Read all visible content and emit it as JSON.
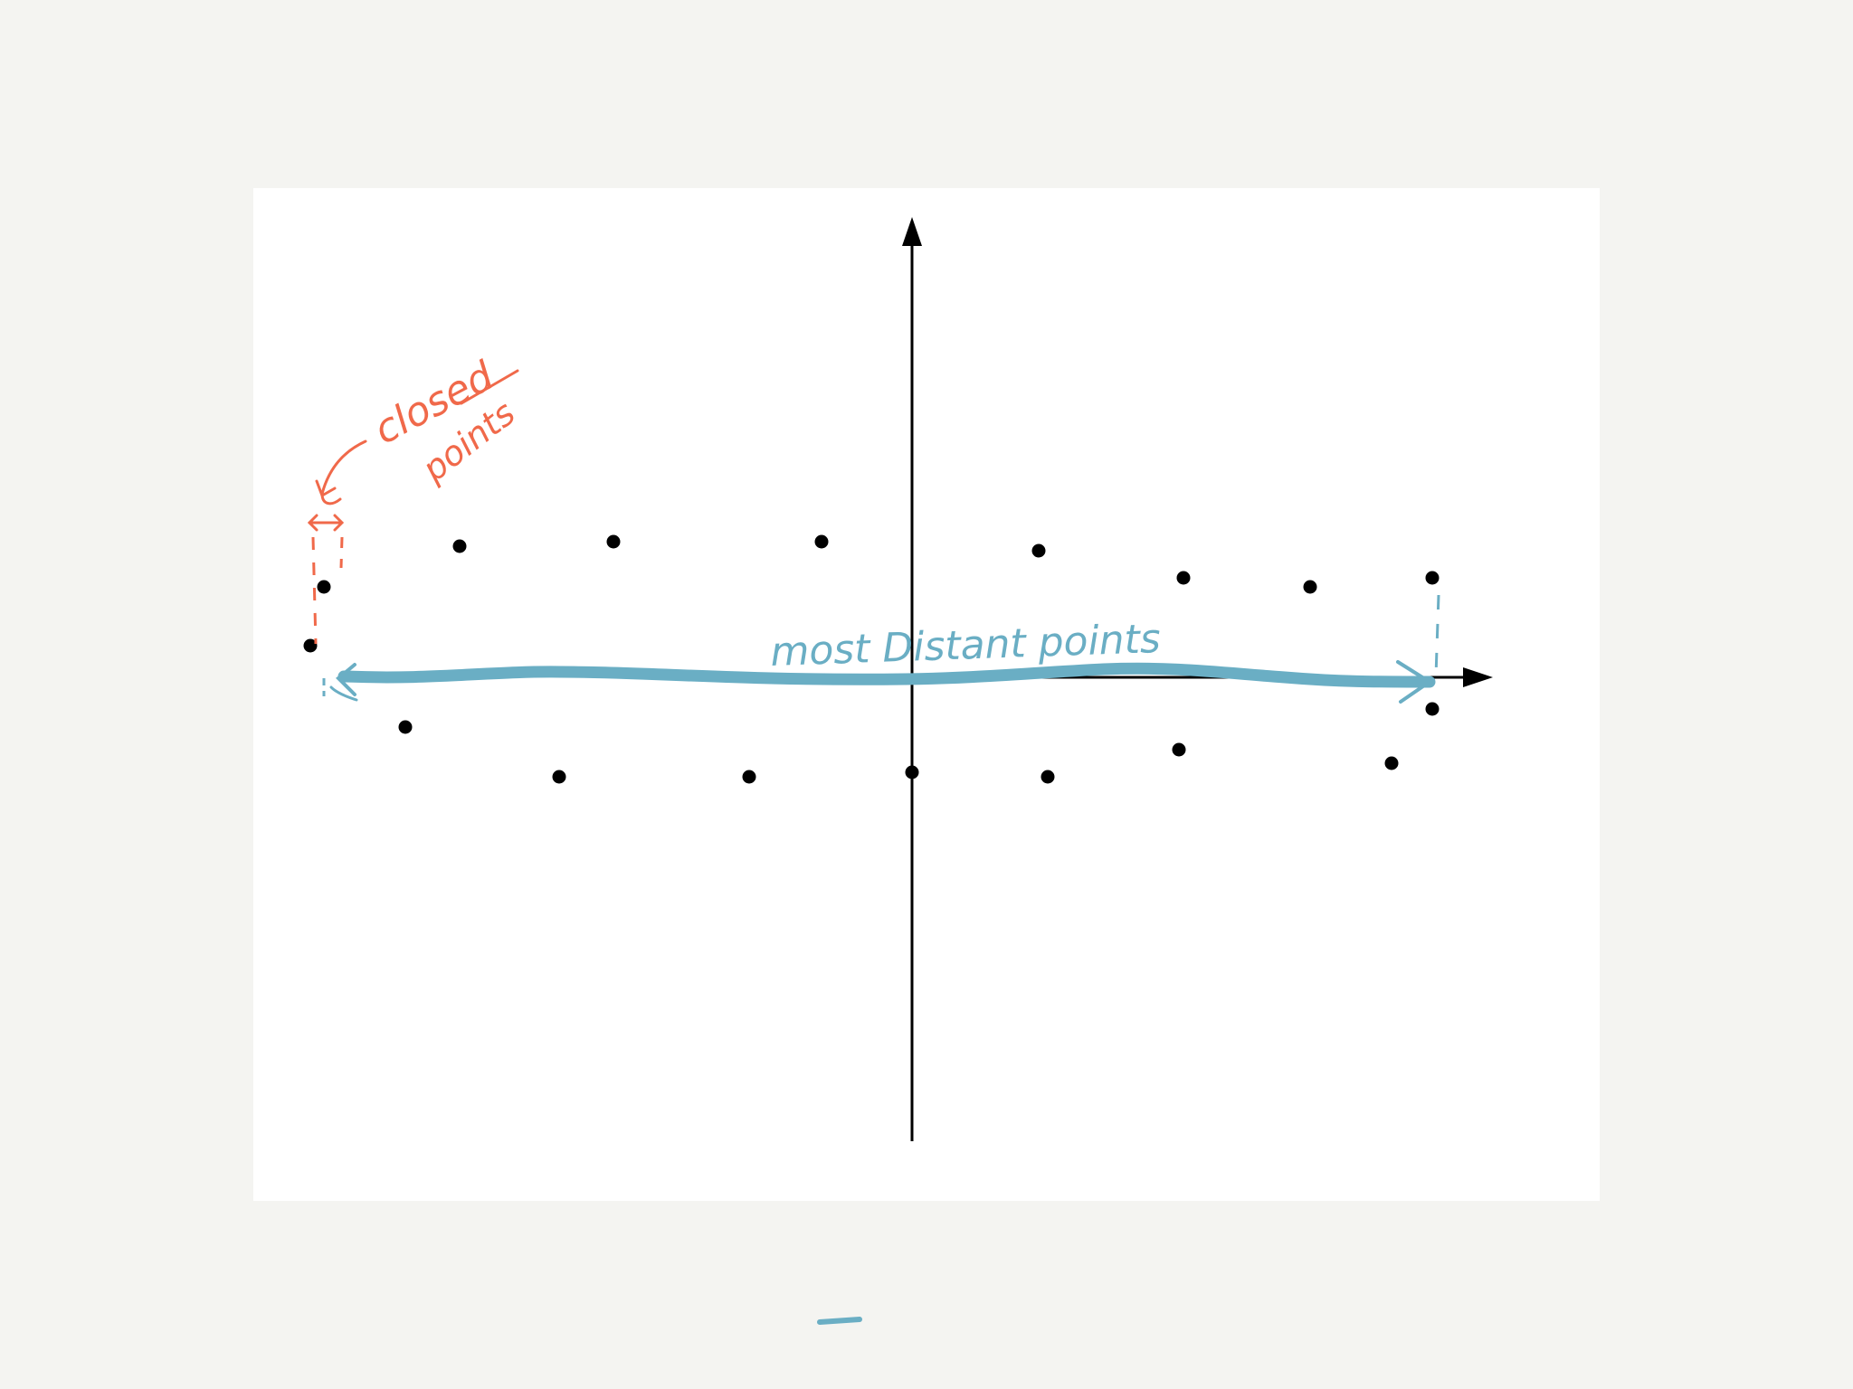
{
  "colors": {
    "background": "#f4f4f1",
    "sheet": "#ffffff",
    "axis": "#000000",
    "point": "#000000",
    "annotation_closest": "#f0694a",
    "annotation_distant": "#6aaec4"
  },
  "points": [
    {
      "x": -6.5,
      "y": 1.0
    },
    {
      "x": -6.65,
      "y": 0.35
    },
    {
      "x": -5.0,
      "y": 1.45
    },
    {
      "x": -3.3,
      "y": 1.5
    },
    {
      "x": -1.0,
      "y": 1.5
    },
    {
      "x": 1.4,
      "y": 1.4
    },
    {
      "x": 3.0,
      "y": 1.1
    },
    {
      "x": 4.4,
      "y": 1.0
    },
    {
      "x": 5.75,
      "y": 1.1
    },
    {
      "x": -5.6,
      "y": -0.55
    },
    {
      "x": -3.9,
      "y": -1.1
    },
    {
      "x": -1.8,
      "y": -1.1
    },
    {
      "x": 0.0,
      "y": -1.05
    },
    {
      "x": 1.5,
      "y": -1.1
    },
    {
      "x": 2.95,
      "y": -0.8
    },
    {
      "x": 5.3,
      "y": -0.95
    },
    {
      "x": 5.75,
      "y": -0.35
    }
  ],
  "annotations": {
    "closest_label_line1": "closed",
    "closest_label_line2": "points",
    "distant_label": "most Distant points"
  },
  "icons": {
    "x_axis_arrow": "arrow-right-icon",
    "y_axis_arrow": "arrow-up-icon"
  }
}
